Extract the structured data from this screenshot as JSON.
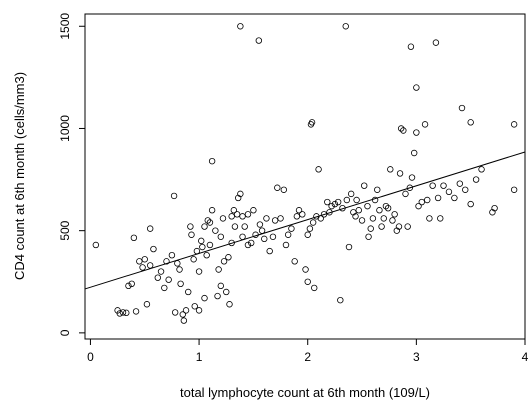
{
  "chart_data": {
    "type": "scatter",
    "xlabel": "total lymphocyte count at 6th month (109/L)",
    "ylabel": "CD4 count at 6th month (cells/mm3)",
    "xlim": [
      -0.05,
      4.0
    ],
    "ylim": [
      -30,
      1560
    ],
    "x_ticks": [
      0,
      1,
      2,
      3,
      4
    ],
    "y_ticks": [
      0,
      500,
      1000,
      1500
    ],
    "x_tick_labels": [
      "0",
      "1",
      "2",
      "3",
      "4"
    ],
    "y_tick_labels": [
      "0",
      "500",
      "1000",
      "1500"
    ],
    "grid": false,
    "regression_line": {
      "x": [
        -0.05,
        4.0
      ],
      "y": [
        215,
        885
      ]
    },
    "points": [
      [
        0.05,
        430
      ],
      [
        0.25,
        110
      ],
      [
        0.27,
        95
      ],
      [
        0.3,
        100
      ],
      [
        0.33,
        98
      ],
      [
        0.35,
        230
      ],
      [
        0.38,
        240
      ],
      [
        0.4,
        465
      ],
      [
        0.42,
        105
      ],
      [
        0.45,
        350
      ],
      [
        0.48,
        320
      ],
      [
        0.5,
        360
      ],
      [
        0.52,
        140
      ],
      [
        0.55,
        510
      ],
      [
        0.55,
        330
      ],
      [
        0.58,
        410
      ],
      [
        0.62,
        270
      ],
      [
        0.65,
        300
      ],
      [
        0.68,
        220
      ],
      [
        0.7,
        350
      ],
      [
        0.72,
        260
      ],
      [
        0.75,
        380
      ],
      [
        0.77,
        670
      ],
      [
        0.78,
        100
      ],
      [
        0.8,
        340
      ],
      [
        0.82,
        310
      ],
      [
        0.83,
        240
      ],
      [
        0.85,
        90
      ],
      [
        0.86,
        60
      ],
      [
        0.88,
        110
      ],
      [
        0.9,
        200
      ],
      [
        0.92,
        520
      ],
      [
        0.93,
        480
      ],
      [
        0.95,
        360
      ],
      [
        0.96,
        130
      ],
      [
        0.98,
        400
      ],
      [
        1.0,
        110
      ],
      [
        1.0,
        300
      ],
      [
        1.02,
        450
      ],
      [
        1.03,
        420
      ],
      [
        1.05,
        170
      ],
      [
        1.05,
        520
      ],
      [
        1.07,
        380
      ],
      [
        1.08,
        550
      ],
      [
        1.1,
        540
      ],
      [
        1.1,
        430
      ],
      [
        1.12,
        840
      ],
      [
        1.12,
        600
      ],
      [
        1.15,
        500
      ],
      [
        1.17,
        180
      ],
      [
        1.18,
        310
      ],
      [
        1.2,
        230
      ],
      [
        1.2,
        470
      ],
      [
        1.22,
        560
      ],
      [
        1.23,
        350
      ],
      [
        1.25,
        200
      ],
      [
        1.27,
        370
      ],
      [
        1.28,
        140
      ],
      [
        1.3,
        440
      ],
      [
        1.3,
        570
      ],
      [
        1.32,
        600
      ],
      [
        1.33,
        520
      ],
      [
        1.35,
        580
      ],
      [
        1.36,
        660
      ],
      [
        1.38,
        1500
      ],
      [
        1.38,
        680
      ],
      [
        1.4,
        570
      ],
      [
        1.4,
        470
      ],
      [
        1.42,
        520
      ],
      [
        1.45,
        580
      ],
      [
        1.45,
        430
      ],
      [
        1.48,
        440
      ],
      [
        1.5,
        600
      ],
      [
        1.52,
        480
      ],
      [
        1.55,
        1430
      ],
      [
        1.56,
        530
      ],
      [
        1.58,
        500
      ],
      [
        1.6,
        460
      ],
      [
        1.62,
        560
      ],
      [
        1.65,
        400
      ],
      [
        1.68,
        470
      ],
      [
        1.7,
        550
      ],
      [
        1.72,
        710
      ],
      [
        1.75,
        560
      ],
      [
        1.78,
        700
      ],
      [
        1.8,
        430
      ],
      [
        1.82,
        480
      ],
      [
        1.85,
        510
      ],
      [
        1.88,
        350
      ],
      [
        1.9,
        570
      ],
      [
        1.92,
        600
      ],
      [
        1.95,
        580
      ],
      [
        1.98,
        310
      ],
      [
        2.0,
        250
      ],
      [
        2.0,
        480
      ],
      [
        2.02,
        510
      ],
      [
        2.03,
        1020
      ],
      [
        2.04,
        1030
      ],
      [
        2.05,
        540
      ],
      [
        2.06,
        220
      ],
      [
        2.08,
        570
      ],
      [
        2.1,
        800
      ],
      [
        2.12,
        560
      ],
      [
        2.15,
        580
      ],
      [
        2.18,
        640
      ],
      [
        2.2,
        590
      ],
      [
        2.22,
        620
      ],
      [
        2.25,
        630
      ],
      [
        2.28,
        640
      ],
      [
        2.3,
        160
      ],
      [
        2.32,
        610
      ],
      [
        2.35,
        1500
      ],
      [
        2.36,
        650
      ],
      [
        2.38,
        420
      ],
      [
        2.4,
        680
      ],
      [
        2.42,
        590
      ],
      [
        2.44,
        570
      ],
      [
        2.45,
        650
      ],
      [
        2.47,
        600
      ],
      [
        2.5,
        550
      ],
      [
        2.52,
        720
      ],
      [
        2.55,
        620
      ],
      [
        2.56,
        470
      ],
      [
        2.58,
        510
      ],
      [
        2.6,
        560
      ],
      [
        2.62,
        650
      ],
      [
        2.64,
        700
      ],
      [
        2.66,
        600
      ],
      [
        2.68,
        520
      ],
      [
        2.7,
        560
      ],
      [
        2.72,
        620
      ],
      [
        2.74,
        610
      ],
      [
        2.76,
        800
      ],
      [
        2.78,
        550
      ],
      [
        2.8,
        580
      ],
      [
        2.82,
        500
      ],
      [
        2.84,
        520
      ],
      [
        2.85,
        780
      ],
      [
        2.86,
        1000
      ],
      [
        2.88,
        990
      ],
      [
        2.9,
        680
      ],
      [
        2.92,
        520
      ],
      [
        2.94,
        710
      ],
      [
        2.95,
        1400
      ],
      [
        2.96,
        760
      ],
      [
        2.98,
        880
      ],
      [
        3.0,
        980
      ],
      [
        3.0,
        1200
      ],
      [
        3.02,
        620
      ],
      [
        3.05,
        640
      ],
      [
        3.08,
        1020
      ],
      [
        3.1,
        650
      ],
      [
        3.12,
        560
      ],
      [
        3.15,
        720
      ],
      [
        3.18,
        1420
      ],
      [
        3.2,
        660
      ],
      [
        3.22,
        560
      ],
      [
        3.25,
        720
      ],
      [
        3.3,
        690
      ],
      [
        3.35,
        660
      ],
      [
        3.4,
        730
      ],
      [
        3.42,
        1100
      ],
      [
        3.45,
        700
      ],
      [
        3.5,
        630
      ],
      [
        3.5,
        1030
      ],
      [
        3.55,
        750
      ],
      [
        3.6,
        800
      ],
      [
        3.7,
        590
      ],
      [
        3.72,
        610
      ],
      [
        3.9,
        700
      ],
      [
        3.9,
        1020
      ]
    ]
  }
}
